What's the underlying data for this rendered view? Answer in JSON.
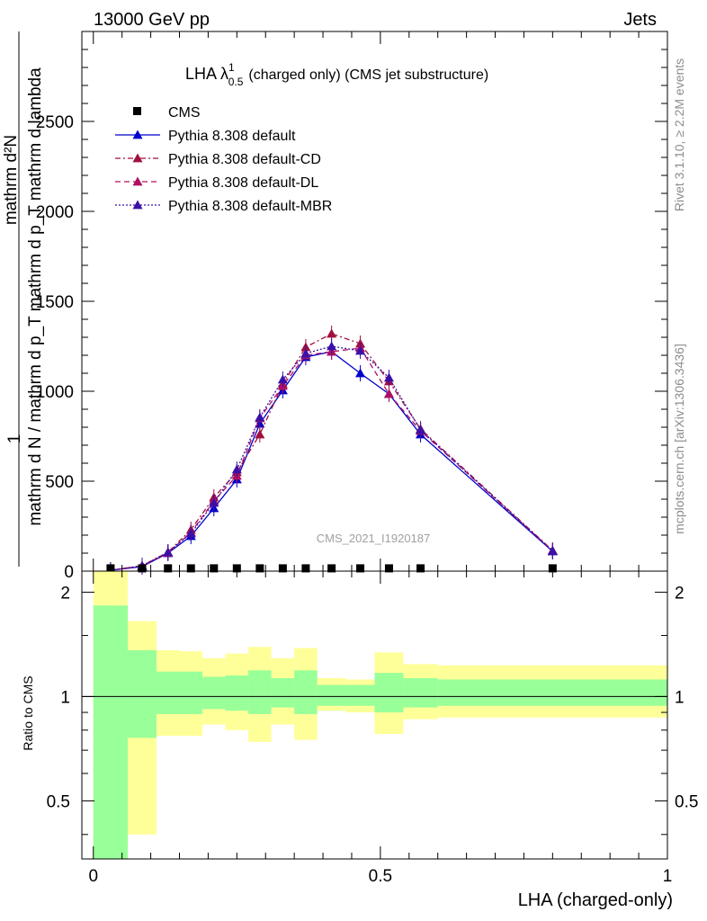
{
  "header": {
    "left": "13000 GeV pp",
    "right": "Jets"
  },
  "side_text": {
    "rivet": "Rivet 3.1.10, ≥ 2.2M events",
    "mcplots": "mcplots.cern.ch [arXiv:1306.3436]"
  },
  "chart_data": {
    "type": "line",
    "title_main": "LHA λ",
    "title_sup": "1",
    "title_sub": "0.5",
    "title_rest": "(charged only) (CMS jet substructure)",
    "watermark": "CMS_2021_I1920187",
    "xlabel": "LHA (charged-only)",
    "ylabel_top": "1",
    "ylabel_denominator": "mathrm d N / mathrm d p_T mathrm d p_T mathrm d lambda",
    "ylabel_numerator": "mathrm d²N",
    "ratio_ylabel": "Ratio to CMS",
    "xlim": [
      -0.02,
      1.0
    ],
    "ylim": [
      0,
      3000
    ],
    "ratio_ylim": [
      0.34,
      2.3
    ],
    "x_ticks": [
      {
        "v": 0,
        "t": "0"
      },
      {
        "v": 0.5,
        "t": "0.5"
      },
      {
        "v": 1,
        "t": "1"
      }
    ],
    "y_ticks": [
      {
        "v": 0,
        "t": "0"
      },
      {
        "v": 500,
        "t": "500"
      },
      {
        "v": 1000,
        "t": "1000"
      },
      {
        "v": 1500,
        "t": "1500"
      },
      {
        "v": 2000,
        "t": "2000"
      },
      {
        "v": 2500,
        "t": "2500"
      }
    ],
    "ratio_ticks": [
      {
        "v": 0.5,
        "t": "0.5"
      },
      {
        "v": 1,
        "t": "1"
      },
      {
        "v": 2,
        "t": "2"
      }
    ],
    "x": [
      0.03,
      0.085,
      0.13,
      0.17,
      0.21,
      0.25,
      0.29,
      0.33,
      0.37,
      0.415,
      0.465,
      0.515,
      0.57,
      0.8
    ],
    "cms": {
      "name": "CMS",
      "values": [
        3,
        3,
        3,
        3,
        3,
        3,
        3,
        3,
        3,
        3,
        3,
        3,
        3,
        3
      ]
    },
    "series": [
      {
        "name": "Pythia 8.308 default",
        "color": "#0000cc",
        "dash": "",
        "values": [
          5,
          25,
          100,
          195,
          350,
          510,
          820,
          1005,
          1190,
          1220,
          1100,
          985,
          760,
          110
        ]
      },
      {
        "name": "Pythia 8.308 default-CD",
        "color": "#a0103c",
        "dash": "6,3,2,3",
        "values": [
          5,
          30,
          105,
          230,
          410,
          550,
          760,
          1040,
          1245,
          1320,
          1265,
          1055,
          790,
          115
        ]
      },
      {
        "name": "Pythia 8.308 default-DL",
        "color": "#b01060",
        "dash": "6,4",
        "values": [
          5,
          28,
          102,
          215,
          390,
          530,
          850,
          1030,
          1200,
          1220,
          1240,
          985,
          780,
          112
        ]
      },
      {
        "name": "Pythia 8.308 default-MBR",
        "color": "#3a10a8",
        "dash": "2,2",
        "values": [
          5,
          30,
          105,
          210,
          380,
          565,
          855,
          1065,
          1210,
          1250,
          1225,
          1075,
          785,
          112
        ]
      }
    ],
    "ratio_bands": {
      "edges": [
        0.0,
        0.06,
        0.11,
        0.15,
        0.19,
        0.23,
        0.27,
        0.31,
        0.35,
        0.39,
        0.44,
        0.49,
        0.54,
        0.6,
        1.0
      ],
      "green_lo": [
        0.34,
        0.76,
        0.89,
        0.89,
        0.92,
        0.91,
        0.89,
        0.93,
        0.89,
        0.94,
        0.94,
        0.9,
        0.93,
        0.94
      ],
      "green_hi": [
        1.83,
        1.36,
        1.18,
        1.18,
        1.14,
        1.15,
        1.19,
        1.13,
        1.19,
        1.08,
        1.08,
        1.17,
        1.13,
        1.12
      ],
      "yellow_lo": [
        0.34,
        0.4,
        0.77,
        0.77,
        0.83,
        0.8,
        0.74,
        0.83,
        0.75,
        0.91,
        0.9,
        0.78,
        0.86,
        0.87
      ],
      "yellow_hi": [
        2.3,
        1.65,
        1.36,
        1.35,
        1.29,
        1.33,
        1.39,
        1.29,
        1.38,
        1.13,
        1.12,
        1.34,
        1.24,
        1.23
      ]
    }
  }
}
